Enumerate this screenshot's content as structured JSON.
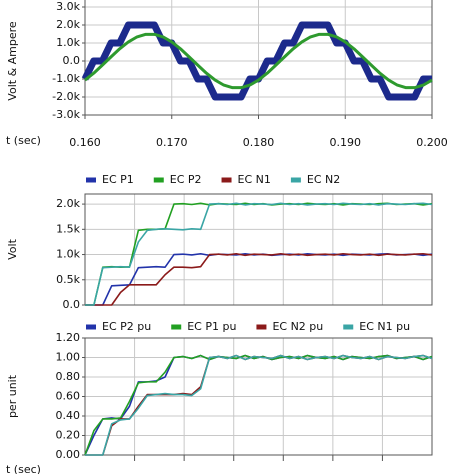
{
  "chart_data": [
    {
      "type": "line",
      "ylabel": "Volt & Ampere",
      "xlabel": "t (sec)",
      "grid": true,
      "x": [
        0.16,
        0.161,
        0.162,
        0.163,
        0.164,
        0.165,
        0.166,
        0.167,
        0.168,
        0.169,
        0.17,
        0.171,
        0.172,
        0.173,
        0.174,
        0.175,
        0.176,
        0.177,
        0.178,
        0.179,
        0.18,
        0.181,
        0.182,
        0.183,
        0.184,
        0.185,
        0.186,
        0.187,
        0.188,
        0.189,
        0.19,
        0.191,
        0.192,
        0.193,
        0.194,
        0.195,
        0.196,
        0.197,
        0.198,
        0.199,
        0.2
      ],
      "xlim": [
        0.16,
        0.2
      ],
      "xticks": [
        {
          "value": 0.16,
          "label": "0.160"
        },
        {
          "value": 0.17,
          "label": "0.170"
        },
        {
          "value": 0.18,
          "label": "0.180"
        },
        {
          "value": 0.19,
          "label": "0.190"
        },
        {
          "value": 0.2,
          "label": "0.200"
        }
      ],
      "ylim": [
        -3000,
        3000
      ],
      "yticks": [
        {
          "value": 3000,
          "label": "3.0k"
        },
        {
          "value": 2000,
          "label": "2.0k"
        },
        {
          "value": 1000,
          "label": "1.0k"
        },
        {
          "value": 0,
          "label": "0.0"
        },
        {
          "value": -1000,
          "label": "-1.0k"
        },
        {
          "value": -2000,
          "label": "-2.0k"
        },
        {
          "value": -3000,
          "label": "-3.0k"
        }
      ],
      "series": [
        {
          "color": "#1c2a8c",
          "values": [
            -1000,
            0,
            0,
            1000,
            1000,
            2000,
            2000,
            2000,
            2000,
            1000,
            1000,
            0,
            0,
            -1000,
            -1000,
            -2000,
            -2000,
            -2000,
            -2000,
            -1000,
            -1000,
            0,
            0,
            1000,
            1000,
            2000,
            2000,
            2000,
            2000,
            1000,
            1000,
            0,
            0,
            -1000,
            -1000,
            -2000,
            -2000,
            -2000,
            -2000,
            -1000,
            -1000
          ]
        },
        {
          "color": "#2e9a2e",
          "values": [
            -1060,
            -680,
            -230,
            230,
            680,
            1060,
            1340,
            1480,
            1480,
            1340,
            1060,
            680,
            230,
            -230,
            -680,
            -1060,
            -1340,
            -1480,
            -1480,
            -1340,
            -1060,
            -680,
            -230,
            230,
            680,
            1060,
            1340,
            1480,
            1480,
            1340,
            1060,
            680,
            230,
            -230,
            -680,
            -1060,
            -1340,
            -1480,
            -1480,
            -1340,
            -1060
          ]
        }
      ]
    },
    {
      "type": "line",
      "ylabel": "Volt",
      "grid": true,
      "legend": "top",
      "categories": [
        null,
        null,
        null,
        null,
        null,
        null,
        null,
        null,
        null,
        null,
        null,
        null,
        null,
        null,
        null,
        null,
        null,
        null,
        null,
        null,
        null,
        null,
        null,
        null,
        null,
        null,
        null,
        null,
        null,
        null,
        null,
        null,
        null,
        null,
        null,
        null,
        null,
        null,
        null,
        null
      ],
      "ylim": [
        0,
        2200
      ],
      "yticks": [
        {
          "value": 0,
          "label": "0.0"
        },
        {
          "value": 500,
          "label": "0.5k"
        },
        {
          "value": 1000,
          "label": "1.0k"
        },
        {
          "value": 1500,
          "label": "1.5k"
        },
        {
          "value": 2000,
          "label": "2.0k"
        }
      ],
      "series": [
        {
          "name": "EC P1",
          "color": "#2233aa",
          "values": [
            0,
            0,
            0,
            380,
            390,
            400,
            740,
            750,
            760,
            750,
            1000,
            1008,
            992,
            1016,
            984,
            1008,
            1000,
            992,
            1016,
            992,
            1008,
            984,
            1000,
            1008,
            992,
            1016,
            1000,
            992,
            1008,
            984,
            1008,
            1000,
            992,
            1008,
            1016,
            992,
            1000,
            1008,
            984,
            1008
          ]
        },
        {
          "name": "EC P2",
          "color": "#22a022",
          "values": [
            0,
            0,
            750,
            760,
            750,
            755,
            1480,
            1500,
            1500,
            1510,
            2000,
            2008,
            1992,
            2016,
            1984,
            2008,
            2000,
            1992,
            2016,
            1992,
            2008,
            1984,
            2000,
            2008,
            1992,
            2016,
            2000,
            1992,
            2008,
            1984,
            2008,
            2000,
            1992,
            2008,
            2016,
            1992,
            2000,
            2008,
            1984,
            2008
          ]
        },
        {
          "name": "EC N1",
          "color": "#8b1a1a",
          "values": [
            0,
            0,
            0,
            0,
            250,
            400,
            400,
            400,
            400,
            600,
            750,
            750,
            740,
            760,
            1000,
            1008,
            992,
            1016,
            984,
            1008,
            1000,
            992,
            1016,
            992,
            1008,
            984,
            1000,
            1008,
            992,
            1016,
            1000,
            992,
            1008,
            984,
            1008,
            1000,
            992,
            1008,
            1016,
            992
          ]
        },
        {
          "name": "EC N2",
          "color": "#3aa5a5",
          "values": [
            0,
            0,
            740,
            750,
            760,
            750,
            1250,
            1480,
            1500,
            1510,
            1500,
            1490,
            1510,
            1500,
            2000,
            2008,
            1992,
            2016,
            1984,
            2008,
            2000,
            1992,
            2016,
            1992,
            2008,
            1984,
            2000,
            2008,
            1992,
            2016,
            2000,
            1992,
            2008,
            1984,
            2008,
            2000,
            1992,
            2008,
            2016,
            1992
          ]
        }
      ]
    },
    {
      "type": "line",
      "ylabel": "per unit",
      "xlabel": "t (sec)",
      "grid": true,
      "legend": "top",
      "categories": [
        null,
        null,
        null,
        null,
        null,
        null,
        null,
        null,
        null,
        null,
        null,
        null,
        null,
        null,
        null,
        null,
        null,
        null,
        null,
        null,
        null,
        null,
        null,
        null,
        null,
        null,
        null,
        null,
        null,
        null,
        null,
        null,
        null,
        null,
        null,
        null,
        null,
        null,
        null,
        null
      ],
      "ylim": [
        0,
        1.2
      ],
      "yticks": [
        {
          "value": 0,
          "label": "0.00"
        },
        {
          "value": 0.2,
          "label": "0.20"
        },
        {
          "value": 0.4,
          "label": "0.40"
        },
        {
          "value": 0.6,
          "label": "0.60"
        },
        {
          "value": 0.8,
          "label": "0.80"
        },
        {
          "value": 1,
          "label": "1.00"
        },
        {
          "value": 1.2,
          "label": "1.20"
        }
      ],
      "series": [
        {
          "name": "EC P2 pu",
          "color": "#2233aa",
          "values": [
            0,
            0.2,
            0.37,
            0.38,
            0.37,
            0.5,
            0.75,
            0.75,
            0.76,
            0.8,
            1,
            1.01,
            0.99,
            1.02,
            0.98,
            1.01,
            1,
            0.99,
            1.02,
            0.99,
            1.01,
            0.98,
            1,
            1.01,
            0.99,
            1.02,
            1,
            0.99,
            1.01,
            0.98,
            1.01,
            1,
            0.99,
            1.01,
            1.02,
            0.99,
            1,
            1.01,
            0.98,
            1.01
          ]
        },
        {
          "name": "EC P1 pu",
          "color": "#22a022",
          "values": [
            0,
            0.25,
            0.37,
            0.37,
            0.38,
            0.55,
            0.74,
            0.75,
            0.75,
            0.85,
            1,
            1.01,
            0.99,
            1.02,
            0.98,
            1.01,
            1,
            0.99,
            1.02,
            0.99,
            1.01,
            0.98,
            1,
            1.01,
            0.99,
            1.02,
            1,
            0.99,
            1.01,
            0.98,
            1.01,
            1,
            0.99,
            1.01,
            1.02,
            0.99,
            1,
            1.01,
            0.98,
            1.01
          ]
        },
        {
          "name": "EC N2 pu",
          "color": "#8b1a1a",
          "values": [
            0,
            0,
            0,
            0.3,
            0.37,
            0.37,
            0.5,
            0.62,
            0.62,
            0.62,
            0.62,
            0.63,
            0.62,
            0.7,
            1,
            1.01,
            0.99,
            1.02,
            0.98,
            1.01,
            1,
            0.99,
            1.02,
            0.99,
            1.01,
            0.98,
            1,
            1.01,
            0.99,
            1.02,
            1,
            0.99,
            1.01,
            0.98,
            1.01,
            1,
            0.99,
            1.01,
            1.02,
            0.99
          ]
        },
        {
          "name": "EC N1 pu",
          "color": "#3aa5a5",
          "values": [
            0,
            0,
            0,
            0.32,
            0.36,
            0.37,
            0.48,
            0.61,
            0.62,
            0.63,
            0.62,
            0.62,
            0.61,
            0.68,
            1,
            1.01,
            0.99,
            1.02,
            0.98,
            1.01,
            1,
            0.99,
            1.02,
            0.99,
            1.01,
            0.98,
            1,
            1.01,
            0.99,
            1.02,
            1,
            0.99,
            1.01,
            0.98,
            1.01,
            1,
            0.99,
            1.01,
            1.02,
            0.99
          ]
        }
      ]
    }
  ]
}
